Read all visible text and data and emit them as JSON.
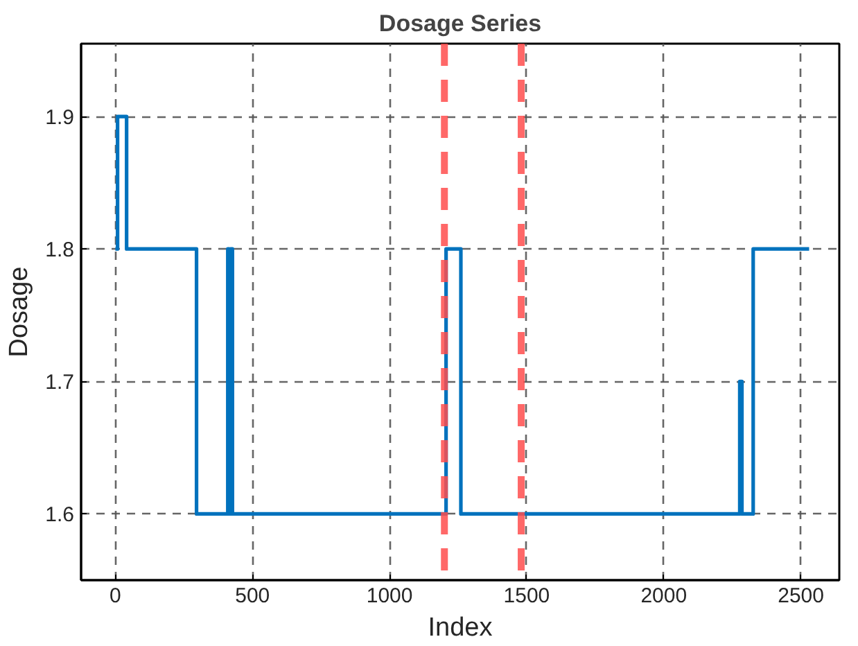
{
  "chart_data": {
    "type": "step",
    "title": "Dosage Series",
    "xlabel": "Index",
    "ylabel": "Dosage",
    "x": [
      0,
      8,
      41,
      296,
      410,
      415,
      420,
      427,
      1206,
      1260,
      2277,
      2285,
      2326,
      2530
    ],
    "series": [
      {
        "color": "#0072bd",
        "values": [
          1.8,
          1.9,
          1.8,
          1.6,
          1.8,
          1.6,
          1.8,
          1.6,
          1.8,
          1.6,
          1.7,
          1.6,
          1.8,
          1.8
        ]
      }
    ],
    "xlim": [
      -125,
      2640
    ],
    "ylim": [
      1.55,
      1.955
    ],
    "xticks": [
      0,
      500,
      1000,
      1500,
      2000,
      2500
    ],
    "yticks": [
      1.6,
      1.7,
      1.8,
      1.9
    ],
    "ref_lines": [
      {
        "axis": "x",
        "value": 1200,
        "color": "#ff4d4d",
        "line_style": "dashed"
      },
      {
        "axis": "x",
        "value": 1480,
        "color": "#ff4d4d",
        "line_style": "dashed"
      }
    ],
    "grid": true,
    "marker": "none",
    "line_style": "solid"
  }
}
